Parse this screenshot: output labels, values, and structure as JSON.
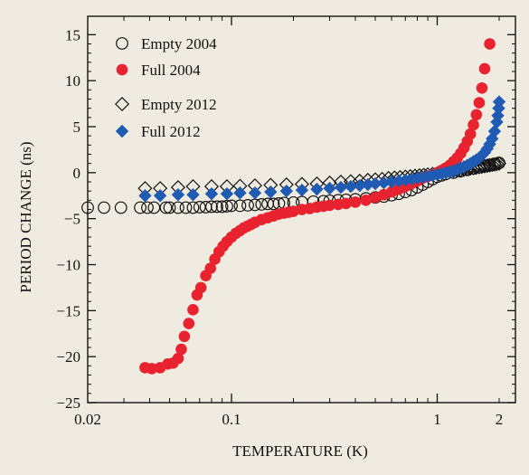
{
  "colors": {
    "background": "#efebe0",
    "red": "#e8222e",
    "blue": "#1f5bb3",
    "ink": "#111111"
  },
  "chart_data": {
    "type": "scatter",
    "title": "",
    "xlabel": "TEMPERATURE (K)",
    "ylabel": "PERIOD CHANGE (ns)",
    "x_scale": "log",
    "xlim": [
      0.02,
      2.4
    ],
    "ylim": [
      -25,
      17
    ],
    "x_ticks": [
      {
        "value": 0.02,
        "label": "0.02"
      },
      {
        "value": 0.1,
        "label": "0.1"
      },
      {
        "value": 1,
        "label": "1"
      },
      {
        "value": 2,
        "label": "2"
      }
    ],
    "y_ticks": [
      {
        "value": 15,
        "label": "15"
      },
      {
        "value": 10,
        "label": "10"
      },
      {
        "value": 5,
        "label": "5"
      },
      {
        "value": 0,
        "label": "0"
      },
      {
        "value": -5,
        "label": "−5"
      },
      {
        "value": -10,
        "label": "−10"
      },
      {
        "value": -15,
        "label": "−15"
      },
      {
        "value": -20,
        "label": "−20"
      },
      {
        "value": -25,
        "label": "−25"
      }
    ],
    "legend_position": "top-left",
    "series": [
      {
        "name": "Empty 2004",
        "marker": "circle-open",
        "color": "#111111",
        "points": [
          [
            0.02,
            -3.8
          ],
          [
            0.024,
            -3.8
          ],
          [
            0.029,
            -3.8
          ],
          [
            0.036,
            -3.8
          ],
          [
            0.039,
            -3.8
          ],
          [
            0.042,
            -3.8
          ],
          [
            0.048,
            -3.8
          ],
          [
            0.05,
            -3.8
          ],
          [
            0.055,
            -3.8
          ],
          [
            0.06,
            -3.8
          ],
          [
            0.065,
            -3.8
          ],
          [
            0.07,
            -3.75
          ],
          [
            0.075,
            -3.75
          ],
          [
            0.08,
            -3.7
          ],
          [
            0.085,
            -3.7
          ],
          [
            0.09,
            -3.7
          ],
          [
            0.095,
            -3.65
          ],
          [
            0.1,
            -3.6
          ],
          [
            0.11,
            -3.6
          ],
          [
            0.12,
            -3.55
          ],
          [
            0.13,
            -3.5
          ],
          [
            0.14,
            -3.45
          ],
          [
            0.15,
            -3.4
          ],
          [
            0.16,
            -3.4
          ],
          [
            0.17,
            -3.35
          ],
          [
            0.18,
            -3.3
          ],
          [
            0.2,
            -3.25
          ],
          [
            0.22,
            -3.2
          ],
          [
            0.25,
            -3.15
          ],
          [
            0.28,
            -3.1
          ],
          [
            0.3,
            -3.05
          ],
          [
            0.33,
            -3.0
          ],
          [
            0.36,
            -2.95
          ],
          [
            0.4,
            -2.9
          ],
          [
            0.45,
            -2.8
          ],
          [
            0.5,
            -2.7
          ],
          [
            0.55,
            -2.6
          ],
          [
            0.6,
            -2.45
          ],
          [
            0.65,
            -2.3
          ],
          [
            0.7,
            -2.1
          ],
          [
            0.75,
            -1.9
          ],
          [
            0.8,
            -1.6
          ],
          [
            0.85,
            -1.3
          ],
          [
            0.9,
            -1.0
          ],
          [
            0.95,
            -0.7
          ],
          [
            1.0,
            -0.45
          ],
          [
            1.05,
            -0.3
          ],
          [
            1.1,
            -0.15
          ],
          [
            1.2,
            0.0
          ],
          [
            1.3,
            0.15
          ],
          [
            1.4,
            0.3
          ],
          [
            1.5,
            0.45
          ],
          [
            1.6,
            0.6
          ],
          [
            1.7,
            0.75
          ],
          [
            1.8,
            0.85
          ],
          [
            1.9,
            0.95
          ],
          [
            2.0,
            1.05
          ]
        ]
      },
      {
        "name": "Full 2004",
        "marker": "circle-filled",
        "color": "#e8222e",
        "points": [
          [
            0.038,
            -21.2
          ],
          [
            0.041,
            -21.3
          ],
          [
            0.045,
            -21.2
          ],
          [
            0.049,
            -20.8
          ],
          [
            0.052,
            -20.7
          ],
          [
            0.055,
            -20.2
          ],
          [
            0.057,
            -19.2
          ],
          [
            0.059,
            -17.8
          ],
          [
            0.062,
            -16.4
          ],
          [
            0.065,
            -14.9
          ],
          [
            0.068,
            -13.3
          ],
          [
            0.071,
            -12.5
          ],
          [
            0.075,
            -11.2
          ],
          [
            0.079,
            -10.4
          ],
          [
            0.083,
            -9.4
          ],
          [
            0.087,
            -8.6
          ],
          [
            0.091,
            -8.0
          ],
          [
            0.095,
            -7.5
          ],
          [
            0.1,
            -7.0
          ],
          [
            0.105,
            -6.6
          ],
          [
            0.11,
            -6.3
          ],
          [
            0.115,
            -6.0
          ],
          [
            0.12,
            -5.8
          ],
          [
            0.125,
            -5.6
          ],
          [
            0.13,
            -5.4
          ],
          [
            0.14,
            -5.1
          ],
          [
            0.15,
            -4.9
          ],
          [
            0.16,
            -4.7
          ],
          [
            0.17,
            -4.5
          ],
          [
            0.18,
            -4.4
          ],
          [
            0.19,
            -4.3
          ],
          [
            0.2,
            -4.2
          ],
          [
            0.22,
            -4.0
          ],
          [
            0.24,
            -3.9
          ],
          [
            0.26,
            -3.75
          ],
          [
            0.28,
            -3.65
          ],
          [
            0.3,
            -3.55
          ],
          [
            0.33,
            -3.45
          ],
          [
            0.36,
            -3.35
          ],
          [
            0.4,
            -3.2
          ],
          [
            0.45,
            -3.0
          ],
          [
            0.5,
            -2.7
          ],
          [
            0.55,
            -2.4
          ],
          [
            0.6,
            -2.1
          ],
          [
            0.65,
            -1.8
          ],
          [
            0.7,
            -1.5
          ],
          [
            0.75,
            -1.2
          ],
          [
            0.8,
            -0.9
          ],
          [
            0.85,
            -0.6
          ],
          [
            0.9,
            -0.4
          ],
          [
            0.95,
            -0.2
          ],
          [
            1.0,
            0.0
          ],
          [
            1.05,
            0.25
          ],
          [
            1.1,
            0.5
          ],
          [
            1.15,
            0.8
          ],
          [
            1.2,
            1.2
          ],
          [
            1.25,
            1.6
          ],
          [
            1.3,
            2.1
          ],
          [
            1.35,
            2.7
          ],
          [
            1.4,
            3.4
          ],
          [
            1.45,
            4.2
          ],
          [
            1.5,
            5.2
          ],
          [
            1.55,
            6.3
          ],
          [
            1.6,
            7.6
          ],
          [
            1.65,
            9.2
          ],
          [
            1.7,
            11.3
          ],
          [
            1.8,
            14.0
          ]
        ]
      },
      {
        "name": "Empty 2012",
        "marker": "diamond-open",
        "color": "#111111",
        "points": [
          [
            0.038,
            -1.7
          ],
          [
            0.045,
            -1.7
          ],
          [
            0.055,
            -1.6
          ],
          [
            0.065,
            -1.5
          ],
          [
            0.08,
            -1.5
          ],
          [
            0.095,
            -1.5
          ],
          [
            0.11,
            -1.45
          ],
          [
            0.13,
            -1.4
          ],
          [
            0.155,
            -1.35
          ],
          [
            0.185,
            -1.3
          ],
          [
            0.22,
            -1.25
          ],
          [
            0.26,
            -1.2
          ],
          [
            0.3,
            -1.1
          ],
          [
            0.34,
            -1.0
          ],
          [
            0.38,
            -0.95
          ],
          [
            0.42,
            -0.9
          ],
          [
            0.46,
            -0.8
          ],
          [
            0.5,
            -0.75
          ],
          [
            0.54,
            -0.7
          ],
          [
            0.58,
            -0.6
          ],
          [
            0.62,
            -0.55
          ],
          [
            0.66,
            -0.5
          ],
          [
            0.7,
            -0.45
          ],
          [
            0.74,
            -0.4
          ],
          [
            0.78,
            -0.35
          ],
          [
            0.82,
            -0.3
          ],
          [
            0.86,
            -0.25
          ],
          [
            0.9,
            -0.2
          ],
          [
            0.95,
            -0.15
          ],
          [
            1.0,
            -0.1
          ],
          [
            1.05,
            0.0
          ],
          [
            1.1,
            0.1
          ],
          [
            1.15,
            0.15
          ],
          [
            1.2,
            0.2
          ],
          [
            1.25,
            0.25
          ],
          [
            1.3,
            0.3
          ],
          [
            1.35,
            0.35
          ],
          [
            1.4,
            0.4
          ],
          [
            1.45,
            0.45
          ],
          [
            1.5,
            0.5
          ],
          [
            1.55,
            0.55
          ],
          [
            1.6,
            0.6
          ],
          [
            1.65,
            0.65
          ],
          [
            1.7,
            0.7
          ],
          [
            1.75,
            0.75
          ],
          [
            1.8,
            0.8
          ],
          [
            1.85,
            0.85
          ],
          [
            1.9,
            0.9
          ],
          [
            1.95,
            0.95
          ],
          [
            2.0,
            1.0
          ]
        ]
      },
      {
        "name": "Full 2012",
        "marker": "diamond-filled",
        "color": "#1f5bb3",
        "points": [
          [
            0.038,
            -2.5
          ],
          [
            0.045,
            -2.5
          ],
          [
            0.055,
            -2.4
          ],
          [
            0.065,
            -2.4
          ],
          [
            0.08,
            -2.3
          ],
          [
            0.095,
            -2.3
          ],
          [
            0.11,
            -2.2
          ],
          [
            0.13,
            -2.2
          ],
          [
            0.155,
            -2.1
          ],
          [
            0.185,
            -2.0
          ],
          [
            0.22,
            -1.9
          ],
          [
            0.26,
            -1.8
          ],
          [
            0.3,
            -1.7
          ],
          [
            0.34,
            -1.6
          ],
          [
            0.38,
            -1.5
          ],
          [
            0.42,
            -1.4
          ],
          [
            0.46,
            -1.3
          ],
          [
            0.5,
            -1.2
          ],
          [
            0.55,
            -1.1
          ],
          [
            0.6,
            -1.0
          ],
          [
            0.65,
            -0.9
          ],
          [
            0.7,
            -0.8
          ],
          [
            0.75,
            -0.7
          ],
          [
            0.8,
            -0.6
          ],
          [
            0.85,
            -0.5
          ],
          [
            0.9,
            -0.4
          ],
          [
            0.95,
            -0.3
          ],
          [
            1.0,
            -0.2
          ],
          [
            1.05,
            -0.1
          ],
          [
            1.1,
            0.0
          ],
          [
            1.15,
            0.1
          ],
          [
            1.2,
            0.2
          ],
          [
            1.25,
            0.35
          ],
          [
            1.3,
            0.5
          ],
          [
            1.35,
            0.65
          ],
          [
            1.4,
            0.8
          ],
          [
            1.45,
            1.0
          ],
          [
            1.5,
            1.2
          ],
          [
            1.55,
            1.4
          ],
          [
            1.6,
            1.6
          ],
          [
            1.65,
            1.9
          ],
          [
            1.7,
            2.2
          ],
          [
            1.75,
            2.6
          ],
          [
            1.8,
            3.1
          ],
          [
            1.85,
            3.7
          ],
          [
            1.9,
            4.5
          ],
          [
            1.95,
            5.5
          ],
          [
            1.97,
            6.2
          ],
          [
            1.99,
            7.0
          ],
          [
            2.0,
            7.7
          ]
        ]
      }
    ]
  }
}
